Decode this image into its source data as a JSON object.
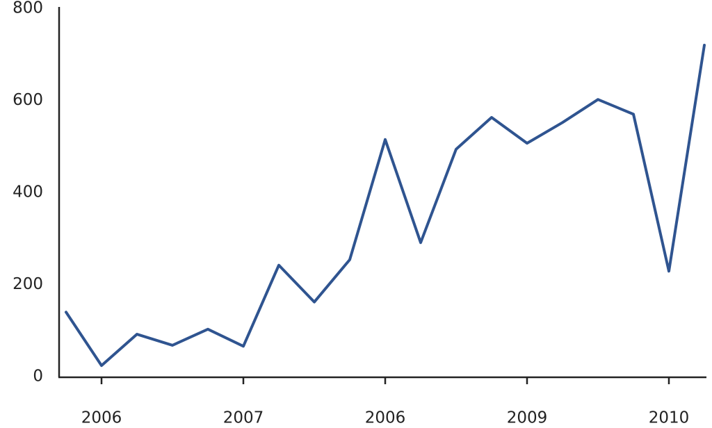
{
  "chart_data": {
    "type": "line",
    "categories": [
      null,
      "2006",
      null,
      null,
      null,
      "2007",
      null,
      null,
      null,
      "2006",
      null,
      null,
      null,
      "2009",
      null,
      null,
      null,
      "2010",
      null
    ],
    "series": [
      {
        "color": "#2f5490",
        "values": [
          140,
          24,
          92,
          68,
          103,
          66,
          242,
          162,
          254,
          515,
          291,
          494,
          563,
          507,
          552,
          602,
          570,
          229,
          720
        ]
      }
    ],
    "ylim": [
      0,
      800
    ],
    "yticks": [
      0,
      200,
      400,
      600,
      800
    ]
  }
}
